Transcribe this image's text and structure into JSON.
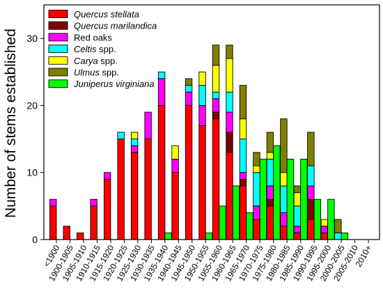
{
  "chart_data": {
    "type": "bar",
    "stacked": true,
    "ylabel": "Number of stems established",
    "ylim": [
      0,
      35
    ],
    "yticks": [
      0,
      10,
      20,
      30
    ],
    "grid": false,
    "legend": "top-left",
    "categories": [
      "<1900",
      "1900-1905",
      "1905-1910",
      "1910-1915",
      "1915-1920",
      "1920-1925",
      "1925-1930",
      "1930-1935",
      "1935-1940",
      "1940-1945",
      "1945-1950",
      "1950-1955",
      "1955-1960",
      "1960-1965",
      "1965-1970",
      "1970-1975",
      "1975-1980",
      "1980-1985",
      "1985-1990",
      "1990-1995",
      "1995-2000",
      "2000-2005",
      "2005-2010",
      "2010+"
    ],
    "series": [
      {
        "name": "Quercus stellata",
        "italic_words": 2,
        "bar_group": 0,
        "color": "#ff0000",
        "values": [
          5,
          2,
          1,
          5,
          9,
          15,
          13,
          15,
          20,
          10,
          20,
          17,
          18,
          13,
          8,
          3,
          5,
          2,
          1,
          3,
          1,
          0,
          0,
          0
        ]
      },
      {
        "name": "Quercus marilandica",
        "italic_words": 2,
        "bar_group": 0,
        "color": "#800000",
        "values": [
          0,
          0,
          0,
          0,
          0,
          0,
          0,
          0,
          0,
          0,
          0,
          0,
          1,
          3,
          1,
          0,
          1,
          0,
          0,
          3,
          0,
          0,
          0,
          0
        ]
      },
      {
        "name": "Red oaks",
        "italic_words": 0,
        "bar_group": 0,
        "color": "#ff00ff",
        "values": [
          1,
          0,
          0,
          1,
          1,
          0,
          1,
          4,
          4,
          2,
          2,
          3,
          2,
          3,
          1,
          2,
          2,
          2,
          1,
          2,
          1,
          0,
          0,
          0
        ]
      },
      {
        "name": "Celtis spp.",
        "italic_words": 1,
        "bar_group": 0,
        "color": "#00ffff",
        "values": [
          0,
          0,
          0,
          0,
          0,
          1,
          1,
          0,
          1,
          0,
          1,
          3,
          1,
          3,
          5,
          5,
          4,
          4,
          3,
          3,
          0,
          1,
          0,
          0
        ]
      },
      {
        "name": "Carya spp.",
        "italic_words": 1,
        "bar_group": 0,
        "color": "#ffff00",
        "values": [
          0,
          0,
          0,
          0,
          0,
          0,
          1,
          0,
          0,
          2,
          0,
          2,
          4,
          5,
          3,
          1,
          1,
          2,
          2,
          0,
          1,
          0,
          0,
          0
        ]
      },
      {
        "name": "Ulmus spp.",
        "italic_words": 1,
        "bar_group": 0,
        "color": "#808000",
        "values": [
          0,
          0,
          0,
          0,
          0,
          0,
          0,
          0,
          0,
          0,
          1,
          0,
          3,
          2,
          5,
          2,
          3,
          8,
          1,
          5,
          0,
          2,
          0,
          0
        ]
      },
      {
        "name": "Juniperus virginiana",
        "italic_words": 2,
        "bar_group": 1,
        "color": "#00ff00",
        "values": [
          0,
          0,
          0,
          0,
          0,
          0,
          0,
          0,
          1,
          0,
          0,
          1,
          5,
          8,
          4,
          12,
          14,
          12,
          12,
          6,
          6,
          1,
          0,
          0
        ]
      }
    ]
  }
}
